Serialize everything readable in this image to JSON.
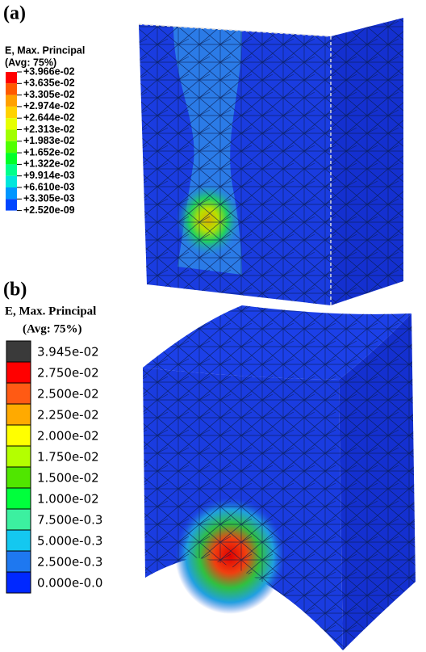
{
  "panel_a": {
    "label": "(a)",
    "legend": {
      "title": "E, Max. Principal",
      "subtitle": "(Avg: 75%)",
      "labels": [
        "+3.966e-02",
        "+3.635e-02",
        "+3.305e-02",
        "+2.974e-02",
        "+2.644e-02",
        "+2.313e-02",
        "+1.983e-02",
        "+1.652e-02",
        "+1.322e-02",
        "+9.914e-03",
        "+6.610e-03",
        "+3.305e-03",
        "+2.520e-09"
      ],
      "colors": [
        "#ff0000",
        "#ff5a00",
        "#ffa000",
        "#ffd200",
        "#e6ff00",
        "#a0ff00",
        "#50ff00",
        "#00ff28",
        "#00ff8c",
        "#00e6dc",
        "#0096ff",
        "#0046ff"
      ]
    }
  },
  "panel_b": {
    "label": "(b)",
    "legend": {
      "title": "E, Max. Principal",
      "subtitle": "(Avg: 75%)",
      "labels": [
        "3.945e-02",
        "2.750e-02",
        "2.500e-02",
        "2.250e-02",
        "2.000e-02",
        "1.750e-02",
        "1.500e-02",
        "1.000e-02",
        "7.500e-0.3",
        "5.000e-0.3",
        "2.500e-0.3",
        "0.000e-0.0"
      ],
      "colors": [
        "#3a3a3a",
        "#ff0000",
        "#ff5a14",
        "#ffaa00",
        "#ffff00",
        "#b4ff00",
        "#50e600",
        "#00ff3c",
        "#3cf0a0",
        "#14c8f0",
        "#1e78f0",
        "#0028ff"
      ]
    }
  }
}
